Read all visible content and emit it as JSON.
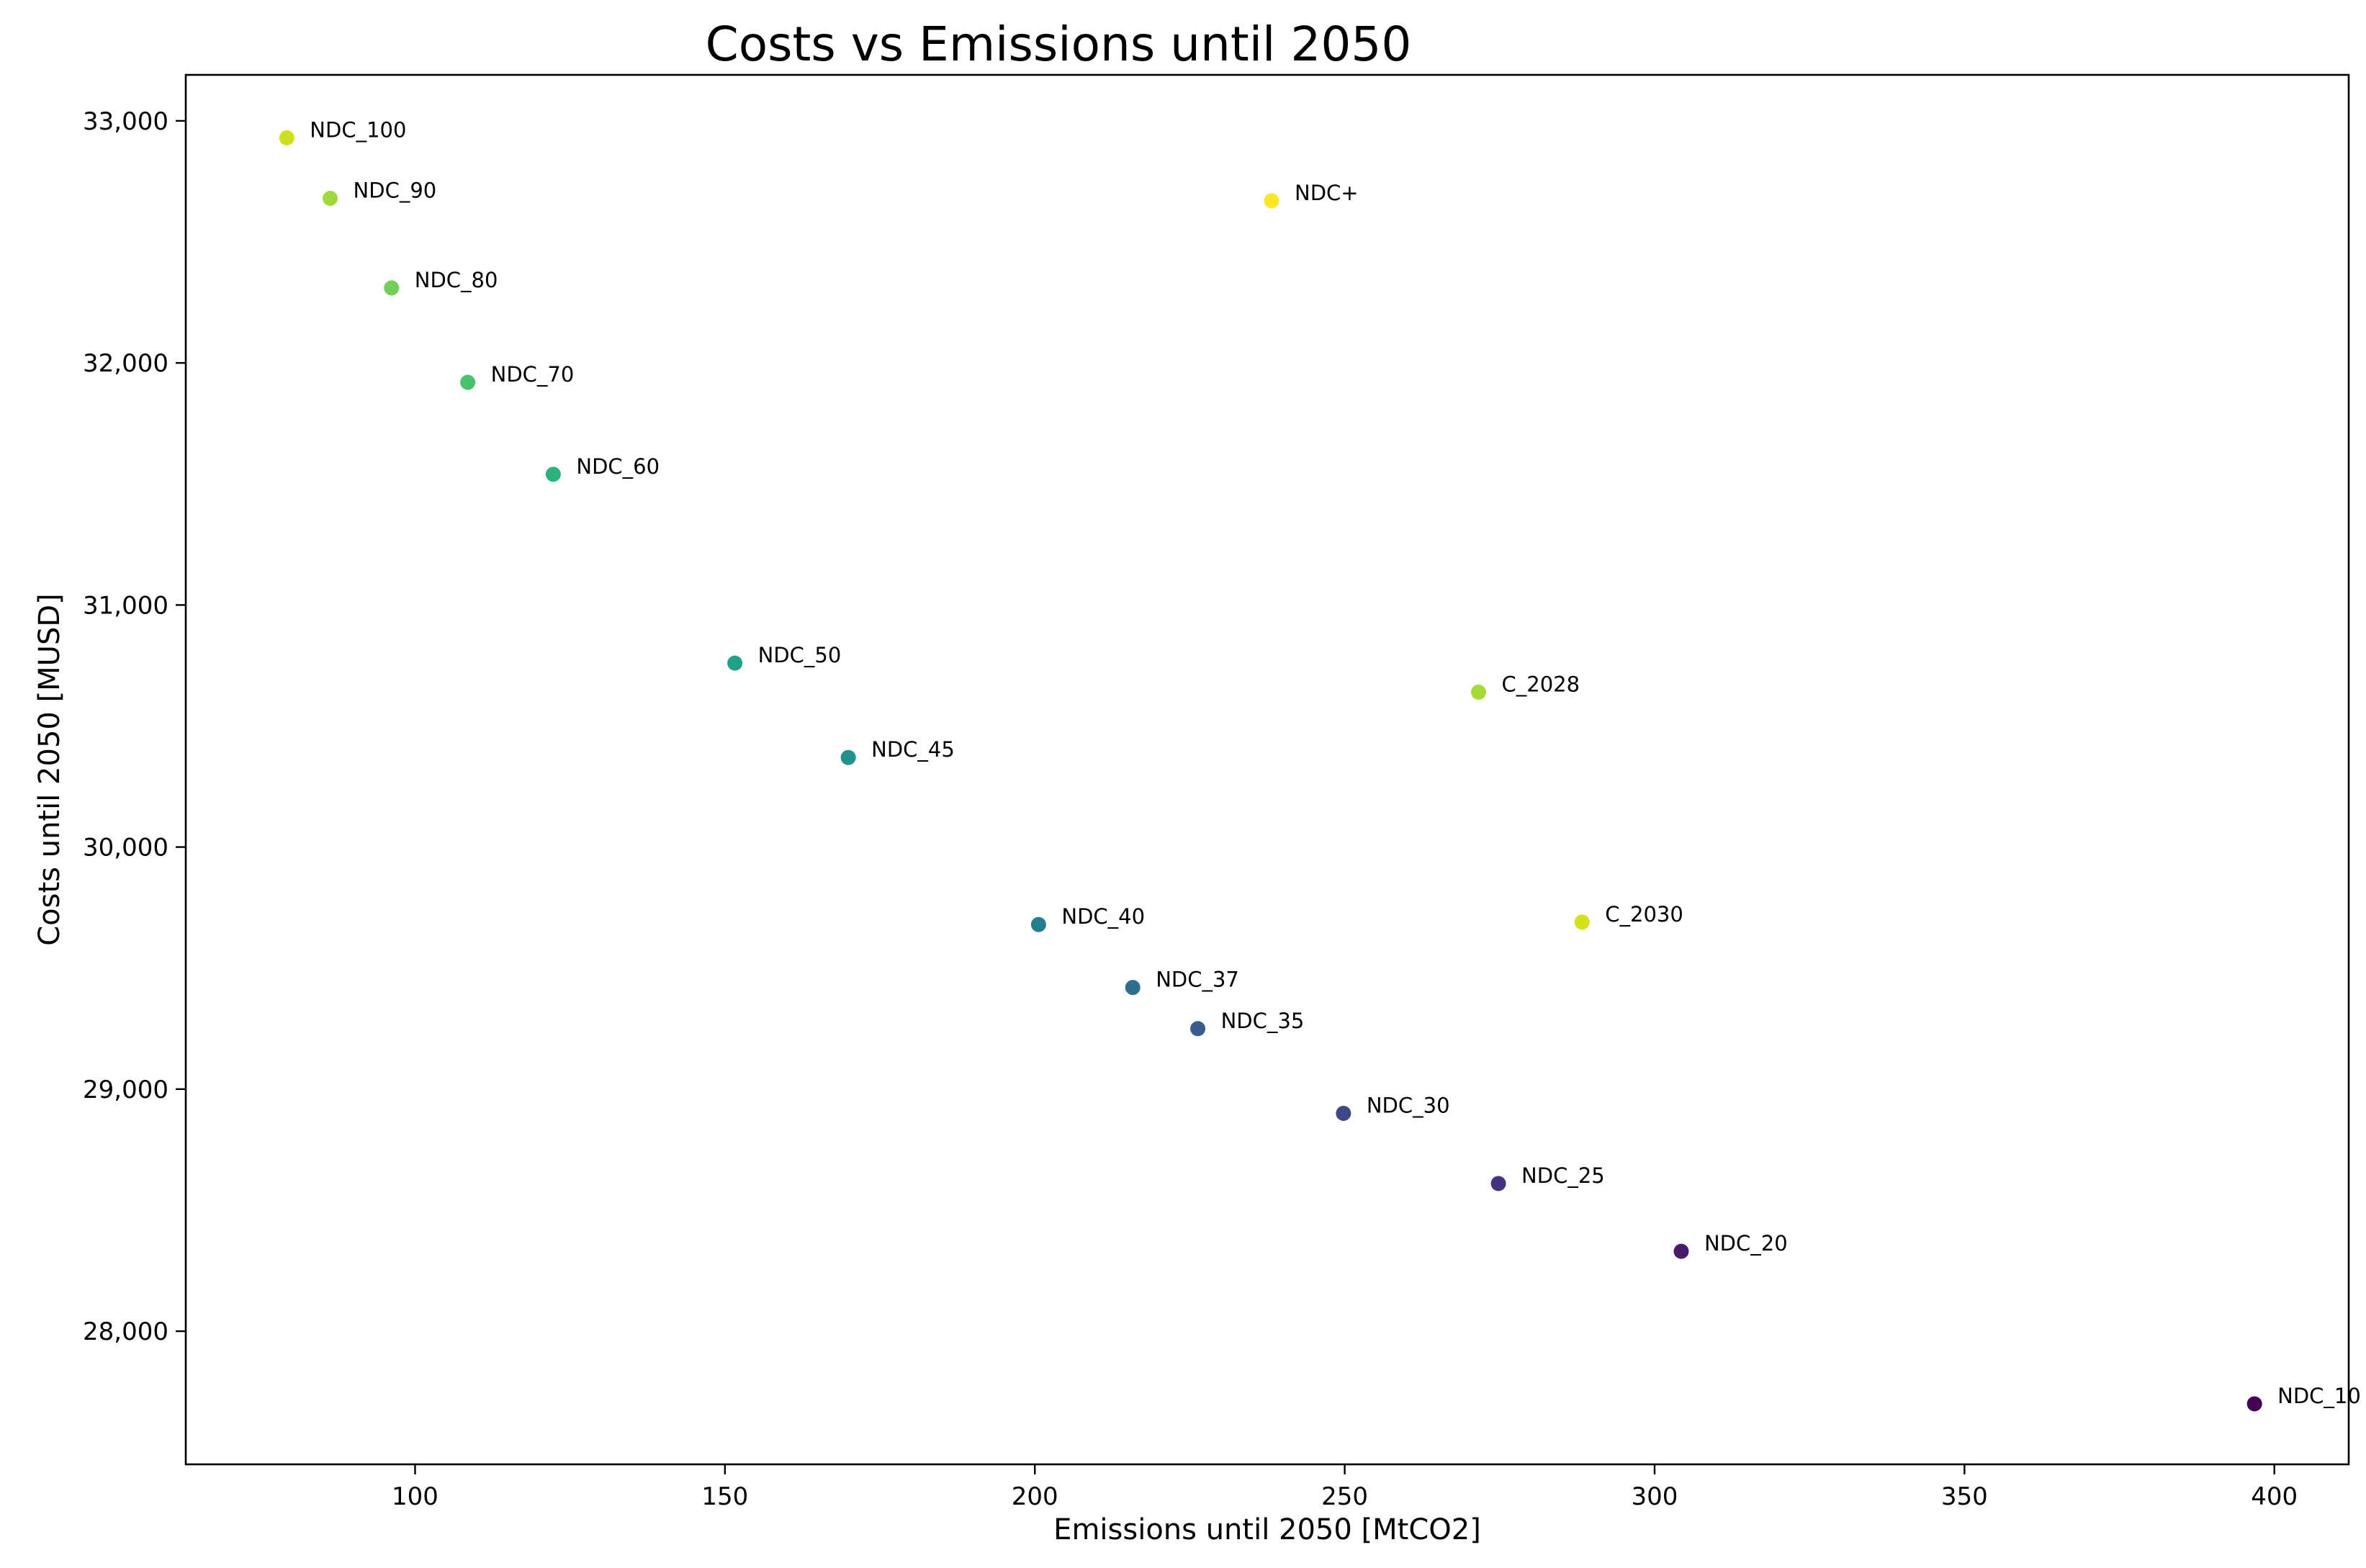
{
  "chart_data": {
    "type": "scatter",
    "title": "Costs vs Emissions until 2050",
    "xlabel": "Emissions until 2050 [MtCO2]",
    "ylabel": "Costs until 2050 [MUSD]",
    "xlim": [
      63,
      412
    ],
    "ylim": [
      27450,
      33190
    ],
    "x_ticks": [
      {
        "value": 100,
        "label": "100"
      },
      {
        "value": 150,
        "label": "150"
      },
      {
        "value": 200,
        "label": "200"
      },
      {
        "value": 250,
        "label": "250"
      },
      {
        "value": 300,
        "label": "300"
      },
      {
        "value": 350,
        "label": "350"
      },
      {
        "value": 400,
        "label": "400"
      }
    ],
    "y_ticks": [
      {
        "value": 28000,
        "label": "28,000"
      },
      {
        "value": 29000,
        "label": "29,000"
      },
      {
        "value": 30000,
        "label": "30,000"
      },
      {
        "value": 31000,
        "label": "31,000"
      },
      {
        "value": 32000,
        "label": "32,000"
      },
      {
        "value": 33000,
        "label": "33,000"
      }
    ],
    "grid": false,
    "points": [
      {
        "label": "NDC_10",
        "x": 396.8,
        "y": 27700,
        "color": "#440154"
      },
      {
        "label": "NDC_20",
        "x": 304.3,
        "y": 28330,
        "color": "#481b6d"
      },
      {
        "label": "NDC_25",
        "x": 274.8,
        "y": 28610,
        "color": "#46327e"
      },
      {
        "label": "NDC_30",
        "x": 249.8,
        "y": 28900,
        "color": "#3f4788"
      },
      {
        "label": "NDC_35",
        "x": 226.3,
        "y": 29250,
        "color": "#365c8d"
      },
      {
        "label": "NDC_37",
        "x": 215.8,
        "y": 29420,
        "color": "#2e6e8e"
      },
      {
        "label": "NDC_40",
        "x": 200.6,
        "y": 29680,
        "color": "#277f8e"
      },
      {
        "label": "NDC_45",
        "x": 169.9,
        "y": 30370,
        "color": "#21918c"
      },
      {
        "label": "NDC_50",
        "x": 151.6,
        "y": 30760,
        "color": "#1fa187"
      },
      {
        "label": "NDC_60",
        "x": 122.3,
        "y": 31540,
        "color": "#2db27d"
      },
      {
        "label": "NDC_70",
        "x": 108.5,
        "y": 31920,
        "color": "#4ac16d"
      },
      {
        "label": "NDC_80",
        "x": 96.2,
        "y": 32310,
        "color": "#71cf57"
      },
      {
        "label": "NDC_90",
        "x": 86.3,
        "y": 32680,
        "color": "#9fda3a"
      },
      {
        "label": "NDC_100",
        "x": 79.3,
        "y": 32930,
        "color": "#cfe11c"
      },
      {
        "label": "C_2028",
        "x": 271.6,
        "y": 30640,
        "color": "#a5db36"
      },
      {
        "label": "C_2030",
        "x": 288.3,
        "y": 29690,
        "color": "#d2e21b"
      },
      {
        "label": "NDC+",
        "x": 238.2,
        "y": 32670,
        "color": "#fde725"
      }
    ]
  }
}
